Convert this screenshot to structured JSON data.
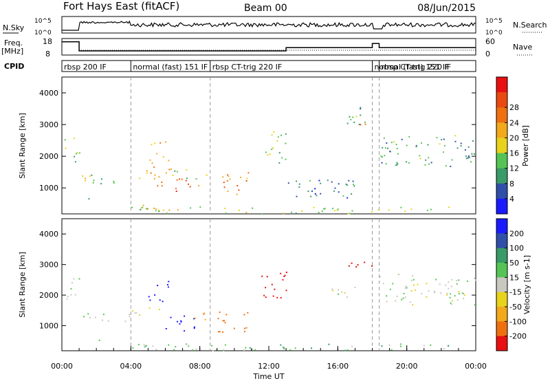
{
  "header": {
    "title": "Fort Hays East (fitACF)",
    "beam": "Beam 00",
    "date": "08/Jun/2015"
  },
  "strips": {
    "nsky_label": "N.Sky",
    "nsearch_label": "N.Search",
    "freq_label_1": "Freq.",
    "freq_label_2": "[MHz]",
    "nave_label": "Nave",
    "cpid_label": "CPID",
    "nsky_ticks": [
      "10^5",
      "10^0"
    ],
    "nsearch_ticks": [
      "10^5",
      "10^0"
    ],
    "freq_ticks": [
      "18",
      "8"
    ],
    "nave_ticks": [
      "60",
      "0"
    ],
    "cpid_segments": [
      {
        "start": 0,
        "end": 4.0,
        "label": "rbsp 200 IF"
      },
      {
        "start": 4.0,
        "end": 8.6,
        "label": "normal (fast) 151 IF"
      },
      {
        "start": 8.6,
        "end": 18.0,
        "label": "rbsp CT-trig 220 IF"
      },
      {
        "start": 18.0,
        "end": 18.4,
        "label": "normal (fast) 151 IF"
      },
      {
        "start": 18.4,
        "end": 24.0,
        "label": "rbsp CT-trig 220 IF"
      }
    ],
    "freq_steps": [
      {
        "t0": 0,
        "t1": 1.0,
        "v": 16
      },
      {
        "t0": 1.0,
        "t1": 13.0,
        "v": 10.5
      },
      {
        "t0": 13.0,
        "t1": 18.0,
        "v": 12.5
      },
      {
        "t0": 18.0,
        "t1": 18.4,
        "v": 15
      },
      {
        "t0": 18.4,
        "t1": 24.0,
        "v": 12.5
      }
    ]
  },
  "colors": {
    "power": [
      "#1a1aff",
      "#2f4fa8",
      "#3a9a68",
      "#55c455",
      "#e8d21c",
      "#f2a91c",
      "#f07010",
      "#e84a10",
      "#e81010"
    ],
    "velocity": [
      "#1a1aff",
      "#2f4fa8",
      "#3a9a68",
      "#55c455",
      "#c8c8c0",
      "#e8d21c",
      "#f2a91c",
      "#f07010",
      "#e81010"
    ]
  },
  "chart_data": [
    {
      "type": "heatmap",
      "name": "power",
      "xlabel": "",
      "ylabel": "Slant Range [km]",
      "xlim": [
        0,
        24
      ],
      "ylim": [
        180,
        4500
      ],
      "yticks": [
        1000,
        2000,
        3000,
        4000
      ],
      "ytick_labels": [
        "1000",
        "2000",
        "3000",
        "4000"
      ],
      "colorbar_label": "Power [dB]",
      "colorbar_ticks": [
        "4",
        "8",
        "12",
        "16",
        "20",
        "24",
        "28"
      ],
      "colorbar_range": [
        0,
        32
      ],
      "grid_verticals": [
        4,
        8.6,
        18.0,
        18.4
      ],
      "scatter_regions": [
        {
          "t0": 0.1,
          "t1": 1.0,
          "r0": 1800,
          "r1": 2600,
          "v": 14
        },
        {
          "t0": 1.0,
          "t1": 4.0,
          "r0": 1150,
          "r1": 1500,
          "v": 14
        },
        {
          "t0": 1.5,
          "t1": 2.2,
          "r0": 480,
          "r1": 700,
          "v": 12
        },
        {
          "t0": 4.0,
          "t1": 6.5,
          "r0": 1300,
          "r1": 1700,
          "v": 20
        },
        {
          "t0": 5.0,
          "t1": 6.2,
          "r0": 1800,
          "r1": 2500,
          "v": 18
        },
        {
          "t0": 5.5,
          "t1": 8.0,
          "r0": 900,
          "r1": 1400,
          "v": 24
        },
        {
          "t0": 6.5,
          "t1": 8.6,
          "r0": 1300,
          "r1": 1600,
          "v": 14
        },
        {
          "t0": 4.5,
          "t1": 5.5,
          "r0": 250,
          "r1": 600,
          "v": 20
        },
        {
          "t0": 9.0,
          "t1": 11.0,
          "r0": 800,
          "r1": 1500,
          "v": 22
        },
        {
          "t0": 11.5,
          "t1": 13.0,
          "r0": 1800,
          "r1": 2800,
          "v": 12
        },
        {
          "t0": 12.5,
          "t1": 17.0,
          "r0": 700,
          "r1": 1300,
          "v": 8
        },
        {
          "t0": 16.5,
          "t1": 17.8,
          "r0": 2900,
          "r1": 3600,
          "v": 10
        },
        {
          "t0": 17.0,
          "t1": 18.0,
          "r0": 3000,
          "r1": 3300,
          "v": 22
        },
        {
          "t0": 18.4,
          "t1": 24.0,
          "r0": 1700,
          "r1": 2700,
          "v": 10
        },
        {
          "t0": 4.0,
          "t1": 23.0,
          "r0": 200,
          "r1": 420,
          "v": 14
        }
      ]
    },
    {
      "type": "heatmap",
      "name": "velocity",
      "xlabel": "Time UT",
      "ylabel": "Slant Range [km]",
      "xlim": [
        0,
        24
      ],
      "ylim": [
        180,
        4500
      ],
      "yticks": [
        1000,
        2000,
        3000,
        4000
      ],
      "ytick_labels": [
        "1000",
        "2000",
        "3000",
        "4000"
      ],
      "xticks": [
        0,
        4,
        8,
        12,
        16,
        20,
        24
      ],
      "xtick_labels": [
        "00:00",
        "04:00",
        "08:00",
        "12:00",
        "16:00",
        "20:00",
        "00:00"
      ],
      "colorbar_label": "Velocity [m s-1]",
      "colorbar_ticks": [
        "200",
        "100",
        "50",
        "15",
        "-15",
        "-50",
        "-100",
        "-200"
      ],
      "grid_verticals": [
        4,
        8.6,
        18.0,
        18.4
      ],
      "scatter_regions": [
        {
          "t0": 0.1,
          "t1": 1.0,
          "r0": 1800,
          "r1": 2600,
          "v": 0
        },
        {
          "t0": 1.0,
          "t1": 4.0,
          "r0": 1150,
          "r1": 1450,
          "v": 0
        },
        {
          "t0": 1.5,
          "t1": 2.2,
          "r0": 480,
          "r1": 700,
          "v": 0
        },
        {
          "t0": 4.0,
          "t1": 6.0,
          "r0": 1350,
          "r1": 1650,
          "v": -30
        },
        {
          "t0": 5.0,
          "t1": 6.2,
          "r0": 1800,
          "r1": 2500,
          "v": 250
        },
        {
          "t0": 5.8,
          "t1": 7.8,
          "r0": 850,
          "r1": 1350,
          "v": 250
        },
        {
          "t0": 7.5,
          "t1": 8.6,
          "r0": 1100,
          "r1": 1500,
          "v": -100
        },
        {
          "t0": 9.0,
          "t1": 11.0,
          "r0": 800,
          "r1": 1500,
          "v": -150
        },
        {
          "t0": 11.5,
          "t1": 13.0,
          "r0": 1800,
          "r1": 2800,
          "v": -250
        },
        {
          "t0": 15.5,
          "t1": 17.0,
          "r0": 1900,
          "r1": 2400,
          "v": 0
        },
        {
          "t0": 16.5,
          "t1": 18.0,
          "r0": 2900,
          "r1": 3300,
          "v": -250
        },
        {
          "t0": 18.4,
          "t1": 24.0,
          "r0": 1700,
          "r1": 2700,
          "v": 0
        },
        {
          "t0": 4.0,
          "t1": 23.0,
          "r0": 200,
          "r1": 420,
          "v": 30
        }
      ]
    }
  ]
}
